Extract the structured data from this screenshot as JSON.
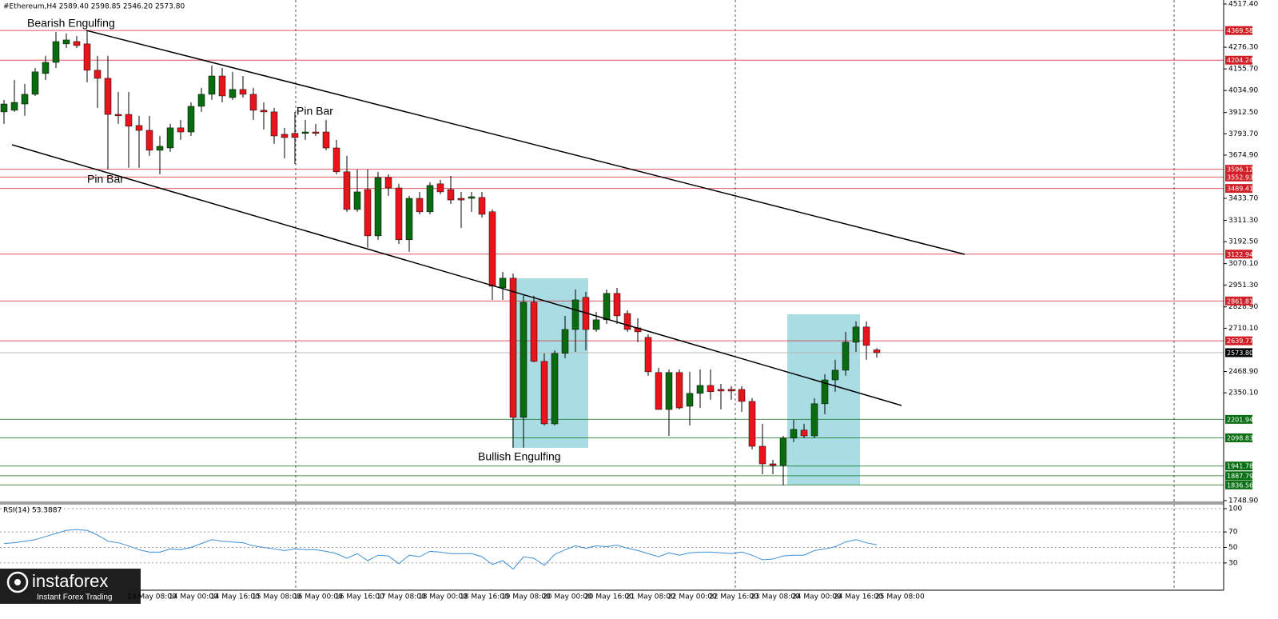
{
  "chart_data": [
    {
      "type": "candlestick",
      "title": "#Ethereum,H4  2589.40 2598.85 2546.20 2573.80",
      "categories": [
        null,
        null,
        null,
        null,
        null,
        null,
        null,
        null,
        null,
        null,
        null,
        null,
        "13 May 08:00",
        null,
        null,
        null,
        "14 May 00:00",
        null,
        null,
        null,
        "14 May 16:00",
        null,
        null,
        null,
        "15 May 08:00",
        null,
        null,
        null,
        "16 May 00:00",
        null,
        null,
        null,
        "16 May 16:00",
        null,
        null,
        null,
        "17 May 08:00",
        null,
        null,
        null,
        "18 May 00:00",
        null,
        null,
        null,
        "18 May 16:00",
        null,
        null,
        null,
        "19 May 08:00",
        null,
        null,
        null,
        "20 May 00:00",
        null,
        null,
        null,
        "20 May 16:00",
        null,
        null,
        null,
        "21 May 08:00",
        null,
        null,
        null,
        "22 May 00:00",
        null,
        null,
        null,
        "22 May 16:00",
        null,
        null,
        null,
        "23 May 08:00",
        null,
        null,
        null,
        "24 May 00:00",
        null,
        null,
        null,
        "24 May 16:00",
        null,
        null,
        null,
        "25 May 08:00"
      ],
      "open": [
        3916,
        3925,
        3960,
        4014,
        4130,
        4192,
        4295,
        4308,
        4295,
        4148,
        4103,
        3902,
        3902,
        3840,
        3813,
        3702,
        3715,
        3827,
        3804,
        3947,
        4014,
        4116,
        3996,
        4041,
        4014,
        3925,
        3916,
        3791,
        3796,
        3796,
        3804,
        3804,
        3715,
        3582,
        3372,
        3483,
        3225,
        3550,
        3492,
        3203,
        3434,
        3359,
        3515,
        3483,
        3434,
        3434,
        3439,
        3359,
        2935,
        2989,
        2213,
        2855,
        2525,
        2177,
        2570,
        2703,
        2882,
        2703,
        2757,
        2904,
        2792,
        2712,
        2659,
        2463,
        2257,
        2463,
        2275,
        2347,
        2391,
        2369,
        2369,
        2369,
        2302,
        2052,
        1954,
        1945,
        2097,
        2142,
        2110,
        2289,
        2422,
        2476,
        2632,
        2717,
        2589.4
      ],
      "high": [
        3983,
        4094,
        4072,
        4161,
        4228,
        4362,
        4353,
        4339,
        4371,
        4228,
        4228,
        4027,
        4027,
        3894,
        3894,
        3782,
        3849,
        3871,
        3969,
        4050,
        4174,
        4161,
        4139,
        4116,
        4050,
        3969,
        3938,
        3827,
        3916,
        3871,
        3849,
        3871,
        3760,
        3671,
        3595,
        3595,
        3582,
        3568,
        3515,
        3448,
        3470,
        3524,
        3537,
        3559,
        3470,
        3470,
        3470,
        3372,
        3024,
        3015,
        2899,
        2891,
        2570,
        2587,
        2779,
        2926,
        2913,
        2801,
        2926,
        2935,
        2810,
        2766,
        2677,
        2489,
        2480,
        2480,
        2467,
        2480,
        2480,
        2400,
        2387,
        2387,
        2320,
        2177,
        1977,
        2110,
        2200,
        2177,
        2320,
        2454,
        2534,
        2690,
        2748,
        2748,
        2598.85
      ],
      "low": [
        3849,
        3916,
        3894,
        4005,
        4094,
        4161,
        4272,
        4272,
        4081,
        3938,
        3595,
        3849,
        3604,
        3604,
        3671,
        3568,
        3693,
        3760,
        3782,
        3916,
        3983,
        3969,
        3983,
        3996,
        3871,
        3818,
        3738,
        3657,
        3626,
        3760,
        3782,
        3702,
        3568,
        3359,
        3359,
        3158,
        3203,
        3448,
        3180,
        3136,
        3345,
        3345,
        3457,
        3403,
        3269,
        3359,
        3327,
        2868,
        2868,
        2044,
        2044,
        2520,
        2168,
        2168,
        2543,
        2578,
        2587,
        2690,
        2734,
        2734,
        2690,
        2632,
        2445,
        2257,
        2110,
        2257,
        2168,
        2266,
        2311,
        2257,
        2311,
        2244,
        2035,
        1896,
        1896,
        1834,
        2075,
        2097,
        2097,
        2231,
        2356,
        2445,
        2578,
        2534,
        2546.2
      ],
      "close": [
        3960,
        3969,
        4014,
        4139,
        4192,
        4308,
        4317,
        4286,
        4148,
        4103,
        3902,
        3894,
        3836,
        3813,
        3702,
        3724,
        3827,
        3804,
        3947,
        4014,
        4116,
        4005,
        4041,
        4014,
        3925,
        3916,
        3782,
        3773,
        3773,
        3804,
        3796,
        3715,
        3582,
        3372,
        3470,
        3225,
        3550,
        3492,
        3203,
        3434,
        3359,
        3506,
        3470,
        3425,
        3425,
        3443,
        3345,
        2944,
        2989,
        2213,
        2855,
        2525,
        2177,
        2570,
        2703,
        2868,
        2703,
        2757,
        2904,
        2779,
        2703,
        2690,
        2467,
        2257,
        2463,
        2266,
        2347,
        2391,
        2356,
        2360,
        2360,
        2302,
        2052,
        1954,
        1945,
        2097,
        2146,
        2110,
        2289,
        2422,
        2476,
        2632,
        2717,
        2614,
        2573.8
      ],
      "up_color": "#0b6b10",
      "down_color": "#e8141b",
      "ylim": [
        1748.9,
        4517.4
      ],
      "yticks": [
        {
          "value": 4517.4,
          "label": "4517.40"
        },
        {
          "value": 4276.3,
          "label": "4276.30"
        },
        {
          "value": 4155.7,
          "label": "4155.70"
        },
        {
          "value": 4034.9,
          "label": "4034.90"
        },
        {
          "value": 3912.5,
          "label": "3912.50"
        },
        {
          "value": 3793.7,
          "label": "3793.70"
        },
        {
          "value": 3674.9,
          "label": "3674.90"
        },
        {
          "value": 3433.7,
          "label": "3433.70"
        },
        {
          "value": 3311.3,
          "label": "3311.30"
        },
        {
          "value": 3192.5,
          "label": "3192.50"
        },
        {
          "value": 3070.1,
          "label": "3070.10"
        },
        {
          "value": 2951.3,
          "label": "2951.30"
        },
        {
          "value": 2828.9,
          "label": "2828.90"
        },
        {
          "value": 2710.1,
          "label": "2710.10"
        },
        {
          "value": 2468.9,
          "label": "2468.90"
        },
        {
          "value": 2350.1,
          "label": "2350.10"
        },
        {
          "value": 1748.9,
          "label": "1748.90"
        }
      ],
      "levels": [
        {
          "color": "#d11f27",
          "values": [
            4369.58,
            4204.24,
            3596.12,
            3552.93,
            3489.41,
            3122.94,
            2861.81,
            2639.77
          ]
        },
        {
          "color": "#0a6e14",
          "values": [
            2201.94,
            2098.83,
            1941.78,
            1887.79,
            1836.56
          ]
        }
      ],
      "current_price": {
        "value": 2573.8,
        "label": "2573.80"
      },
      "annotations": [
        "Bearish Engulfing",
        "Pin Bar",
        "Pin Bar",
        "Bullish  Engulfing"
      ]
    },
    {
      "type": "line",
      "title": "RSI(14) 53.3887",
      "values": [
        55,
        56,
        58,
        60,
        64,
        68,
        72,
        73,
        72,
        66,
        58,
        56,
        52,
        47,
        44,
        44,
        48,
        47,
        50,
        55,
        60,
        58,
        57,
        56,
        52,
        50,
        48,
        46,
        48,
        47,
        47,
        45,
        42,
        36,
        42,
        33,
        40,
        39,
        29,
        40,
        38,
        45,
        44,
        42,
        42,
        42,
        38,
        28,
        33,
        22,
        38,
        36,
        27,
        41,
        47,
        52,
        49,
        52,
        51,
        53,
        49,
        46,
        42,
        38,
        43,
        40,
        43,
        44,
        44,
        43,
        42,
        44,
        40,
        34,
        35,
        39,
        40,
        40,
        46,
        48,
        51,
        57,
        60,
        56,
        53.3887
      ],
      "color": "#3c8fd6",
      "ylim": [
        0,
        100
      ],
      "yticks": [
        100,
        70,
        50,
        30
      ],
      "grid": true
    }
  ],
  "logo": {
    "name": "instaforex",
    "tagline": "Instant Forex Trading"
  }
}
